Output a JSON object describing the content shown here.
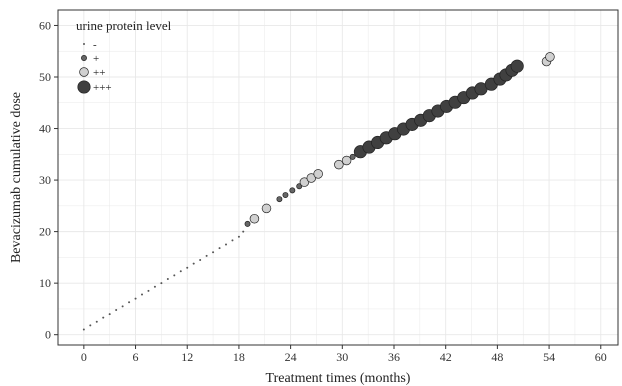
{
  "chart_data": {
    "type": "scatter",
    "title": "",
    "xlabel": "Treatment times (months)",
    "ylabel": "Bevacizumab cumulative dose",
    "xlim": [
      -3,
      62
    ],
    "ylim": [
      -2,
      63
    ],
    "xticks": [
      0,
      6,
      12,
      18,
      24,
      30,
      36,
      42,
      48,
      54,
      60
    ],
    "yticks": [
      0,
      10,
      20,
      30,
      40,
      50,
      60
    ],
    "grid": true,
    "legend": {
      "title": "urine protein level",
      "placement": "top-left",
      "levels": [
        {
          "label": "-",
          "size": 1,
          "color": "#555555"
        },
        {
          "label": "+",
          "size": 2.6,
          "color": "#666666"
        },
        {
          "label": "++",
          "size": 4.4,
          "color": "#d0d0d0"
        },
        {
          "label": "+++",
          "size": 6.2,
          "color": "#404040"
        }
      ]
    },
    "series": [
      {
        "level": "-",
        "points": [
          {
            "x": 0,
            "y": 1
          },
          {
            "x": 0.75,
            "y": 1.8
          },
          {
            "x": 1.5,
            "y": 2.5
          },
          {
            "x": 2.25,
            "y": 3.3
          },
          {
            "x": 3,
            "y": 4
          },
          {
            "x": 3.75,
            "y": 4.8
          },
          {
            "x": 4.5,
            "y": 5.5
          },
          {
            "x": 5.25,
            "y": 6.3
          },
          {
            "x": 6,
            "y": 7
          },
          {
            "x": 6.75,
            "y": 7.8
          },
          {
            "x": 7.5,
            "y": 8.5
          },
          {
            "x": 8.25,
            "y": 9.3
          },
          {
            "x": 9,
            "y": 10
          },
          {
            "x": 9.75,
            "y": 10.8
          },
          {
            "x": 10.5,
            "y": 11.5
          },
          {
            "x": 11.25,
            "y": 12.3
          },
          {
            "x": 12,
            "y": 13
          },
          {
            "x": 12.75,
            "y": 13.8
          },
          {
            "x": 13.5,
            "y": 14.5
          },
          {
            "x": 14.25,
            "y": 15.3
          },
          {
            "x": 15,
            "y": 16
          },
          {
            "x": 15.75,
            "y": 16.8
          },
          {
            "x": 16.5,
            "y": 17.5
          },
          {
            "x": 17.25,
            "y": 18.3
          },
          {
            "x": 18,
            "y": 19
          },
          {
            "x": 18.5,
            "y": 20
          }
        ]
      },
      {
        "level": "+",
        "points": [
          {
            "x": 19,
            "y": 21.5
          },
          {
            "x": 22.7,
            "y": 26.3
          },
          {
            "x": 23.4,
            "y": 27.1
          },
          {
            "x": 24.2,
            "y": 28
          },
          {
            "x": 25,
            "y": 28.8
          },
          {
            "x": 31.2,
            "y": 34.5
          }
        ]
      },
      {
        "level": "++",
        "points": [
          {
            "x": 19.8,
            "y": 22.5
          },
          {
            "x": 21.2,
            "y": 24.5
          },
          {
            "x": 25.6,
            "y": 29.6
          },
          {
            "x": 26.4,
            "y": 30.4
          },
          {
            "x": 27.2,
            "y": 31.2
          },
          {
            "x": 29.6,
            "y": 33
          },
          {
            "x": 30.5,
            "y": 33.8
          },
          {
            "x": 53.7,
            "y": 53
          },
          {
            "x": 54.1,
            "y": 53.9
          }
        ]
      },
      {
        "level": "+++",
        "points": [
          {
            "x": 32.1,
            "y": 35.5
          },
          {
            "x": 33.1,
            "y": 36.4
          },
          {
            "x": 34.1,
            "y": 37.3
          },
          {
            "x": 35.1,
            "y": 38.2
          },
          {
            "x": 36.1,
            "y": 39
          },
          {
            "x": 37.1,
            "y": 39.9
          },
          {
            "x": 38.1,
            "y": 40.8
          },
          {
            "x": 39.1,
            "y": 41.6
          },
          {
            "x": 40.1,
            "y": 42.5
          },
          {
            "x": 41.1,
            "y": 43.4
          },
          {
            "x": 42.1,
            "y": 44.3
          },
          {
            "x": 43.1,
            "y": 45.1
          },
          {
            "x": 44.1,
            "y": 46
          },
          {
            "x": 45.1,
            "y": 46.9
          },
          {
            "x": 46.1,
            "y": 47.7
          },
          {
            "x": 47.3,
            "y": 48.6
          },
          {
            "x": 48.3,
            "y": 49.6
          },
          {
            "x": 49,
            "y": 50.4
          },
          {
            "x": 49.7,
            "y": 51.3
          },
          {
            "x": 50.3,
            "y": 52.1
          }
        ]
      }
    ]
  },
  "colors": {
    "background": "#ffffff",
    "grid": "#e8e8e8",
    "frame": "#333333",
    "marker_stroke": "#222222"
  }
}
